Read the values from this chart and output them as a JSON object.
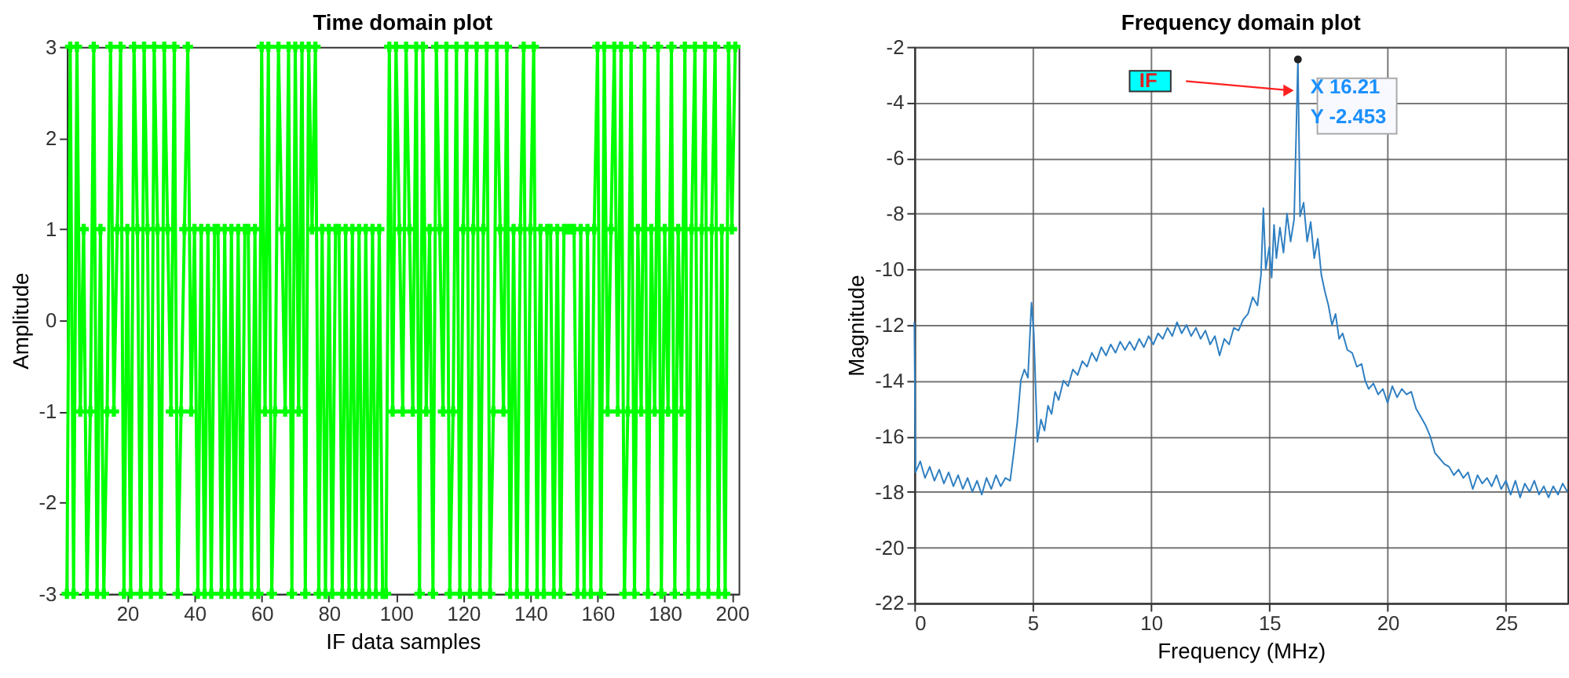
{
  "chart_data": [
    {
      "type": "line",
      "title": "Time domain plot",
      "xlabel": "IF data samples",
      "ylabel": "Amplitude",
      "xlim": [
        2,
        202
      ],
      "xticks": [
        20,
        40,
        60,
        80,
        100,
        120,
        140,
        160,
        180,
        200
      ],
      "ylim": [
        -3,
        3
      ],
      "yticks": [
        -3,
        -2,
        -1,
        0,
        1,
        2,
        3
      ],
      "grid": false,
      "marker": "cross",
      "line_style": "solid",
      "x": [
        2,
        3,
        4,
        5,
        6,
        7,
        8,
        9,
        10,
        11,
        12,
        13,
        14,
        15,
        16,
        17,
        18,
        19,
        20,
        21,
        22,
        23,
        24,
        25,
        26,
        27,
        28,
        29,
        30,
        31,
        32,
        33,
        34,
        35,
        36,
        37,
        38,
        39,
        40,
        41,
        42,
        43,
        44,
        45,
        46,
        47,
        48,
        49,
        50,
        51,
        52,
        53,
        54,
        55,
        56,
        57,
        58,
        59,
        60,
        61,
        62,
        63,
        64,
        65,
        66,
        67,
        68,
        69,
        70,
        71,
        72,
        73,
        74,
        75,
        76,
        77,
        78,
        79,
        80,
        81,
        82,
        83,
        84,
        85,
        86,
        87,
        88,
        89,
        90,
        91,
        92,
        93,
        94,
        95,
        96,
        97,
        98,
        99,
        100,
        101,
        102,
        103,
        104,
        105,
        106,
        107,
        108,
        109,
        110,
        111,
        112,
        113,
        114,
        115,
        116,
        117,
        118,
        119,
        120,
        121,
        122,
        123,
        124,
        125,
        126,
        127,
        128,
        129,
        130,
        131,
        132,
        133,
        134,
        135,
        136,
        137,
        138,
        139,
        140,
        141,
        142,
        143,
        144,
        145,
        146,
        147,
        148,
        149,
        150,
        151,
        152,
        153,
        154,
        155,
        156,
        157,
        158,
        159,
        160,
        161,
        162,
        163,
        164,
        165,
        166,
        167,
        168,
        169,
        170,
        171,
        172,
        173,
        174,
        175,
        176,
        177,
        178,
        179,
        180,
        181,
        182,
        183,
        184,
        185,
        186,
        187,
        188,
        189,
        190,
        191,
        192,
        193,
        194,
        195,
        196,
        197,
        198,
        199,
        200,
        201
      ],
      "series": [
        {
          "color": "#00ff00",
          "values": [
            -3,
            3,
            -3,
            3,
            -1,
            1,
            -3,
            -1,
            3,
            -3,
            1,
            -3,
            -1,
            3,
            -1,
            1,
            3,
            -3,
            1,
            -3,
            3,
            1,
            -3,
            3,
            1,
            -3,
            3,
            1,
            -3,
            3,
            1,
            -1,
            3,
            -3,
            -1,
            1,
            3,
            -1,
            1,
            -3,
            1,
            -3,
            1,
            -3,
            1,
            1,
            -3,
            1,
            -3,
            1,
            -3,
            1,
            -3,
            1,
            1,
            -3,
            1,
            -3,
            3,
            -1,
            3,
            -3,
            -1,
            3,
            1,
            -1,
            3,
            -3,
            3,
            -1,
            3,
            -3,
            3,
            1,
            3,
            -3,
            1,
            -3,
            1,
            -3,
            1,
            1,
            -3,
            1,
            -3,
            1,
            -3,
            1,
            -3,
            1,
            -3,
            1,
            -3,
            1,
            -3,
            -3,
            3,
            -1,
            3,
            1,
            -1,
            3,
            1,
            -1,
            3,
            -3,
            3,
            -1,
            1,
            -3,
            3,
            1,
            -1,
            3,
            -3,
            -1,
            3,
            -3,
            1,
            3,
            -3,
            1,
            3,
            -3,
            1,
            3,
            -3,
            -1,
            3,
            1,
            -1,
            3,
            -3,
            1,
            -3,
            1,
            3,
            -3,
            1,
            3,
            -3,
            1,
            -3,
            1,
            1,
            -3,
            1,
            -3,
            1,
            1,
            1,
            1,
            -3,
            1,
            -3,
            1,
            -3,
            1,
            3,
            -3,
            3,
            -1,
            1,
            3,
            -1,
            3,
            -3,
            -1,
            3,
            -3,
            1,
            -1,
            3,
            -3,
            1,
            -1,
            3,
            -3,
            1,
            -1,
            3,
            -3,
            1,
            -1,
            3,
            -3,
            1,
            3,
            -3,
            1,
            3,
            -3,
            1,
            3,
            -3,
            1,
            -3,
            3,
            1,
            3
          ]
        }
      ]
    },
    {
      "type": "line",
      "title": "Frequency domain plot",
      "xlabel": "Frequency (MHz)",
      "ylabel": "Magnitude",
      "xlim": [
        0,
        27.6
      ],
      "xticks": [
        0,
        5,
        10,
        15,
        20,
        25
      ],
      "ylim": [
        -22,
        -2
      ],
      "yticks": [
        -22,
        -20,
        -18,
        -16,
        -14,
        -12,
        -10,
        -8,
        -6,
        -4,
        -2
      ],
      "grid": true,
      "line_style": "solid",
      "annotations": [
        "IF",
        {
          "text": "X 16.21",
          "x": 16.21,
          "y": -2.453
        },
        {
          "text": "Y -2.453",
          "x": 16.21,
          "y": -2.453
        }
      ],
      "x": [
        0,
        0.05,
        0.25,
        0.45,
        0.65,
        0.85,
        1.05,
        1.25,
        1.45,
        1.65,
        1.85,
        2.05,
        2.25,
        2.45,
        2.65,
        2.85,
        3.05,
        3.25,
        3.45,
        3.65,
        3.85,
        4.05,
        4.2,
        4.35,
        4.5,
        4.65,
        4.8,
        4.95,
        5.05,
        5.2,
        5.35,
        5.5,
        5.65,
        5.8,
        5.95,
        6.1,
        6.3,
        6.5,
        6.7,
        6.9,
        7.1,
        7.3,
        7.5,
        7.7,
        7.9,
        8.1,
        8.3,
        8.5,
        8.7,
        8.9,
        9.1,
        9.3,
        9.5,
        9.7,
        9.9,
        10.1,
        10.3,
        10.5,
        10.7,
        10.9,
        11.1,
        11.3,
        11.5,
        11.7,
        11.9,
        12.1,
        12.3,
        12.5,
        12.7,
        12.9,
        13.1,
        13.3,
        13.5,
        13.7,
        13.9,
        14.1,
        14.3,
        14.5,
        14.65,
        14.75,
        14.85,
        15.0,
        15.1,
        15.2,
        15.3,
        15.45,
        15.6,
        15.75,
        15.9,
        16.05,
        16.21,
        16.3,
        16.45,
        16.6,
        16.75,
        16.9,
        17.05,
        17.2,
        17.35,
        17.5,
        17.65,
        17.8,
        17.95,
        18.1,
        18.3,
        18.5,
        18.7,
        18.9,
        19.05,
        19.2,
        19.4,
        19.6,
        19.8,
        20.0,
        20.2,
        20.4,
        20.6,
        20.8,
        21.0,
        21.2,
        21.4,
        21.6,
        21.8,
        22.0,
        22.2,
        22.4,
        22.6,
        22.8,
        23.0,
        23.2,
        23.4,
        23.6,
        23.8,
        24.0,
        24.2,
        24.4,
        24.6,
        24.8,
        25.0,
        25.2,
        25.4,
        25.6,
        25.8,
        26.0,
        26.2,
        26.4,
        26.6,
        26.8,
        27.0,
        27.2,
        27.4,
        27.6
      ],
      "series": [
        {
          "color": "#2f7fc1",
          "values": [
            -11.9,
            -17.3,
            -16.9,
            -17.5,
            -17.1,
            -17.6,
            -17.2,
            -17.7,
            -17.3,
            -17.8,
            -17.4,
            -17.9,
            -17.5,
            -18.0,
            -17.6,
            -18.1,
            -17.5,
            -17.9,
            -17.4,
            -17.8,
            -17.5,
            -17.6,
            -16.6,
            -15.5,
            -14.0,
            -13.6,
            -13.9,
            -11.2,
            -12.3,
            -16.2,
            -15.4,
            -15.8,
            -14.9,
            -15.2,
            -14.4,
            -14.7,
            -14.0,
            -14.2,
            -13.6,
            -13.8,
            -13.3,
            -13.5,
            -13.0,
            -13.3,
            -12.8,
            -13.1,
            -12.7,
            -13.0,
            -12.6,
            -12.9,
            -12.6,
            -12.9,
            -12.5,
            -12.8,
            -12.4,
            -12.7,
            -12.3,
            -12.5,
            -12.1,
            -12.4,
            -11.9,
            -12.3,
            -12.0,
            -12.4,
            -12.1,
            -12.5,
            -12.2,
            -12.7,
            -12.4,
            -13.1,
            -12.5,
            -12.7,
            -12.1,
            -12.2,
            -11.8,
            -11.6,
            -11.0,
            -11.3,
            -10.2,
            -7.8,
            -10.0,
            -9.2,
            -10.3,
            -8.4,
            -9.6,
            -8.5,
            -9.4,
            -8.0,
            -9.0,
            -8.2,
            -2.453,
            -8.1,
            -7.6,
            -9.0,
            -8.3,
            -9.6,
            -8.9,
            -10.2,
            -10.8,
            -11.3,
            -12.0,
            -11.6,
            -12.5,
            -12.3,
            -12.9,
            -13.0,
            -13.5,
            -13.4,
            -14.0,
            -14.3,
            -14.1,
            -14.5,
            -14.3,
            -14.8,
            -14.2,
            -14.6,
            -14.3,
            -14.5,
            -14.4,
            -15.0,
            -15.3,
            -15.6,
            -16.0,
            -16.6,
            -16.8,
            -17.0,
            -17.1,
            -17.4,
            -17.2,
            -17.5,
            -17.3,
            -17.9,
            -17.4,
            -17.7,
            -17.5,
            -17.8,
            -17.4,
            -17.9,
            -17.6,
            -18.1,
            -17.6,
            -18.2,
            -17.7,
            -18.0,
            -17.6,
            -18.1,
            -17.8,
            -18.2,
            -17.8,
            -18.1,
            -17.7,
            -18.0
          ]
        }
      ]
    }
  ]
}
